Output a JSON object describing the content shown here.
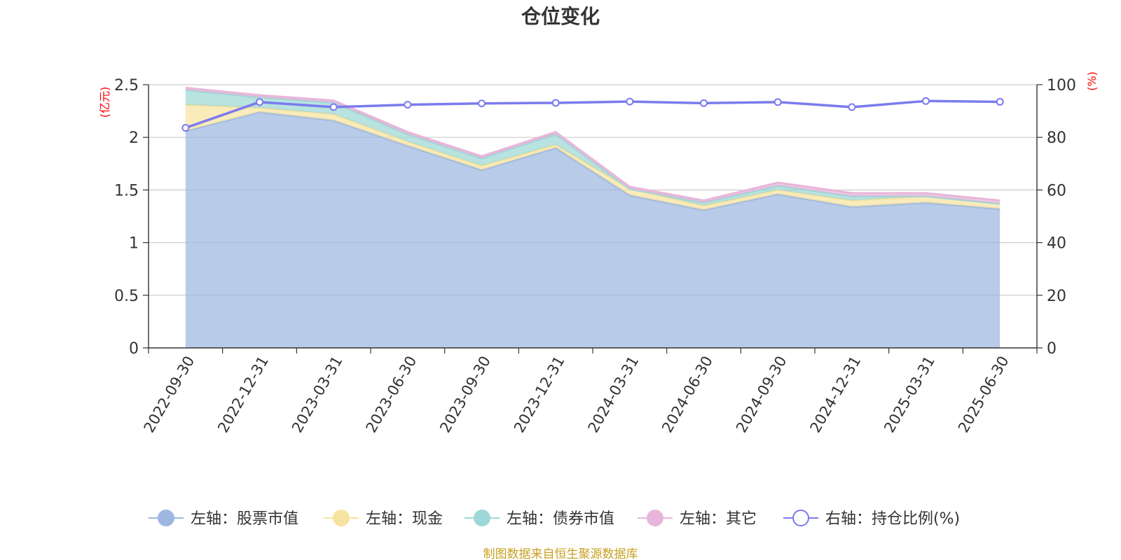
{
  "title": "仓位变化",
  "source_note": "制图数据来自恒生聚源数据库",
  "colors": {
    "stock": "#9db7e0",
    "cash": "#f7e3a0",
    "bond": "#9dd8d6",
    "other": "#e8b6da",
    "ratio": "#7b7bee",
    "unit": "#ff0000",
    "source": "#c8a020"
  },
  "chart_data": {
    "type": "area",
    "title": "仓位变化",
    "categories": [
      "2022-09-30",
      "2022-12-31",
      "2023-03-31",
      "2023-06-30",
      "2023-09-30",
      "2023-12-31",
      "2024-03-31",
      "2024-06-30",
      "2024-09-30",
      "2024-12-31",
      "2025-03-31",
      "2025-06-30"
    ],
    "left_axis": {
      "unit": "(亿元)",
      "ylim": [
        0,
        2.5
      ],
      "ticks": [
        "0",
        "0.5",
        "1",
        "1.5",
        "2",
        "2.5"
      ]
    },
    "right_axis": {
      "unit": "(%)",
      "ylim": [
        0,
        100
      ],
      "ticks": [
        "0",
        "20",
        "40",
        "60",
        "80",
        "100"
      ]
    },
    "grid": true,
    "legend_position": "bottom",
    "series": [
      {
        "name": "左轴：股票市值",
        "axis": "left",
        "type": "area",
        "icon": "circle-filled",
        "values": [
          2.06,
          2.24,
          2.16,
          1.92,
          1.69,
          1.9,
          1.45,
          1.31,
          1.46,
          1.34,
          1.38,
          1.32
        ]
      },
      {
        "name": "左轴：现金",
        "axis": "left",
        "type": "area",
        "icon": "circle-filled",
        "values": [
          0.25,
          0.04,
          0.06,
          0.04,
          0.04,
          0.03,
          0.06,
          0.04,
          0.04,
          0.06,
          0.06,
          0.05
        ]
      },
      {
        "name": "左轴：债券市值",
        "axis": "left",
        "type": "area",
        "icon": "circle-filled",
        "values": [
          0.14,
          0.1,
          0.11,
          0.07,
          0.07,
          0.1,
          0.0,
          0.03,
          0.04,
          0.04,
          0.0,
          0.0
        ]
      },
      {
        "name": "左轴：其它",
        "axis": "left",
        "type": "area",
        "icon": "circle-filled",
        "values": [
          0.02,
          0.02,
          0.02,
          0.02,
          0.02,
          0.02,
          0.02,
          0.02,
          0.03,
          0.03,
          0.03,
          0.03
        ]
      },
      {
        "name": "右轴：持仓比例(%)",
        "axis": "right",
        "type": "line",
        "icon": "circle-hollow",
        "values": [
          83.6,
          93.4,
          91.5,
          92.4,
          92.9,
          93.1,
          93.6,
          93.0,
          93.4,
          91.5,
          93.8,
          93.5
        ]
      }
    ]
  }
}
